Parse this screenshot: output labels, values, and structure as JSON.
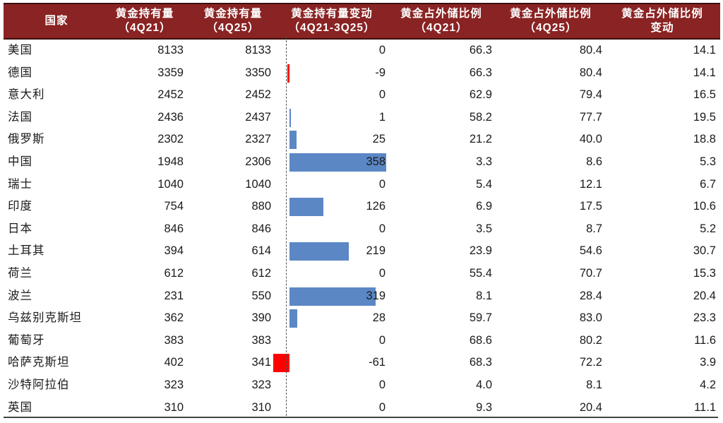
{
  "header": {
    "country": "国家",
    "holdings_4q21": [
      "黄金持有量",
      "（4Q21）"
    ],
    "holdings_4q25": [
      "黄金持有量",
      "（4Q25）"
    ],
    "holdings_change": [
      "黄金持有量变动",
      "（4Q21-3Q25）"
    ],
    "ratio_4q21": [
      "黄金占外储比例",
      "（4Q21）"
    ],
    "ratio_4q25": [
      "黄金占外储比例",
      "（4Q25）"
    ],
    "ratio_change": [
      "黄金占外储比例",
      "变动"
    ]
  },
  "colors": {
    "header_bg": "#8a2323",
    "bar_positive": "#5b87c5",
    "bar_negative": "#ff0000"
  },
  "rows": [
    {
      "country": "美国",
      "h21": "8133",
      "h25": "8133",
      "chg": "0",
      "r21": "66.3",
      "r25": "80.4",
      "rchg": "14.1"
    },
    {
      "country": "德国",
      "h21": "3359",
      "h25": "3350",
      "chg": "-9",
      "r21": "66.3",
      "r25": "80.4",
      "rchg": "14.1"
    },
    {
      "country": "意大利",
      "h21": "2452",
      "h25": "2452",
      "chg": "0",
      "r21": "62.9",
      "r25": "79.4",
      "rchg": "16.5"
    },
    {
      "country": "法国",
      "h21": "2436",
      "h25": "2437",
      "chg": "1",
      "r21": "58.2",
      "r25": "77.7",
      "rchg": "19.5"
    },
    {
      "country": "俄罗斯",
      "h21": "2302",
      "h25": "2327",
      "chg": "25",
      "r21": "21.2",
      "r25": "40.0",
      "rchg": "18.8"
    },
    {
      "country": "中国",
      "h21": "1948",
      "h25": "2306",
      "chg": "358",
      "r21": "3.3",
      "r25": "8.6",
      "rchg": "5.3"
    },
    {
      "country": "瑞士",
      "h21": "1040",
      "h25": "1040",
      "chg": "0",
      "r21": "5.4",
      "r25": "12.1",
      "rchg": "6.7"
    },
    {
      "country": "印度",
      "h21": "754",
      "h25": "880",
      "chg": "126",
      "r21": "6.9",
      "r25": "17.5",
      "rchg": "10.6"
    },
    {
      "country": "日本",
      "h21": "846",
      "h25": "846",
      "chg": "0",
      "r21": "3.5",
      "r25": "8.7",
      "rchg": "5.2"
    },
    {
      "country": "土耳其",
      "h21": "394",
      "h25": "614",
      "chg": "219",
      "r21": "23.9",
      "r25": "54.6",
      "rchg": "30.7"
    },
    {
      "country": "荷兰",
      "h21": "612",
      "h25": "612",
      "chg": "0",
      "r21": "55.4",
      "r25": "70.7",
      "rchg": "15.3"
    },
    {
      "country": "波兰",
      "h21": "231",
      "h25": "550",
      "chg": "319",
      "r21": "8.1",
      "r25": "28.4",
      "rchg": "20.4"
    },
    {
      "country": "乌兹别克斯坦",
      "h21": "362",
      "h25": "390",
      "chg": "28",
      "r21": "59.7",
      "r25": "83.0",
      "rchg": "23.3"
    },
    {
      "country": "葡萄牙",
      "h21": "383",
      "h25": "383",
      "chg": "0",
      "r21": "68.6",
      "r25": "80.2",
      "rchg": "11.6"
    },
    {
      "country": "哈萨克斯坦",
      "h21": "402",
      "h25": "341",
      "chg": "-61",
      "r21": "68.3",
      "r25": "72.2",
      "rchg": "3.9"
    },
    {
      "country": "沙特阿拉伯",
      "h21": "323",
      "h25": "323",
      "chg": "0",
      "r21": "4.0",
      "r25": "8.1",
      "rchg": "4.2"
    },
    {
      "country": "英国",
      "h21": "310",
      "h25": "310",
      "chg": "0",
      "r21": "9.3",
      "r25": "20.4",
      "rchg": "11.1"
    }
  ],
  "chart_data": {
    "type": "table",
    "title": "",
    "columns": [
      "国家",
      "黄金持有量（4Q21）",
      "黄金持有量（4Q25）",
      "黄金持有量变动（4Q21-3Q25）",
      "黄金占外储比例（4Q21）",
      "黄金占外储比例（4Q25）",
      "黄金占外储比例变动"
    ],
    "categories": [
      "美国",
      "德国",
      "意大利",
      "法国",
      "俄罗斯",
      "中国",
      "瑞士",
      "印度",
      "日本",
      "土耳其",
      "荷兰",
      "波兰",
      "乌兹别克斯坦",
      "葡萄牙",
      "哈萨克斯坦",
      "沙特阿拉伯",
      "英国"
    ],
    "series": [
      {
        "name": "黄金持有量（4Q21）",
        "values": [
          8133,
          3359,
          2452,
          2436,
          2302,
          1948,
          1040,
          754,
          846,
          394,
          612,
          231,
          362,
          383,
          402,
          323,
          310
        ]
      },
      {
        "name": "黄金持有量（4Q25）",
        "values": [
          8133,
          3350,
          2452,
          2437,
          2327,
          2306,
          1040,
          880,
          846,
          614,
          612,
          550,
          390,
          383,
          341,
          323,
          310
        ]
      },
      {
        "name": "黄金持有量变动（4Q21-3Q25）",
        "values": [
          0,
          -9,
          0,
          1,
          25,
          358,
          0,
          126,
          0,
          219,
          0,
          319,
          28,
          0,
          -61,
          0,
          0
        ],
        "rendered_as": "data-bar",
        "positive_color": "#5b87c5",
        "negative_color": "#ff0000"
      },
      {
        "name": "黄金占外储比例（4Q21）",
        "values": [
          66.3,
          66.3,
          62.9,
          58.2,
          21.2,
          3.3,
          5.4,
          6.9,
          3.5,
          23.9,
          55.4,
          8.1,
          59.7,
          68.6,
          68.3,
          4.0,
          9.3
        ]
      },
      {
        "name": "黄金占外储比例（4Q25）",
        "values": [
          80.4,
          80.4,
          79.4,
          77.7,
          40.0,
          8.6,
          12.1,
          17.5,
          8.7,
          54.6,
          70.7,
          28.4,
          83.0,
          80.2,
          72.2,
          8.1,
          20.4
        ]
      },
      {
        "name": "黄金占外储比例变动",
        "values": [
          14.1,
          14.1,
          16.5,
          19.5,
          18.8,
          5.3,
          6.7,
          10.6,
          5.2,
          30.7,
          15.3,
          20.4,
          23.3,
          11.6,
          3.9,
          4.2,
          11.1
        ]
      }
    ]
  }
}
